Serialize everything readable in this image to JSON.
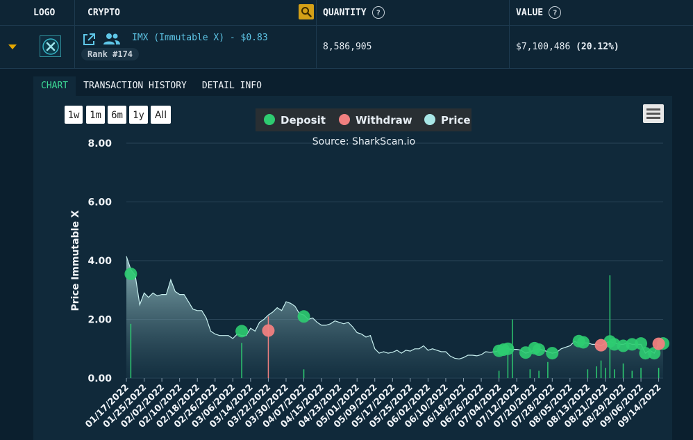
{
  "header": {
    "logo_label": "LOGO",
    "crypto_label": "CRYPTO",
    "quantity_label": "QUANTITY",
    "value_label": "VALUE",
    "help_glyph": "?"
  },
  "asset": {
    "name_price": "IMX (Immutable X) - $0.83",
    "rank": "Rank #174",
    "quantity": "8,586,905",
    "value": "$7,100,486",
    "value_pct": "(20.12%)"
  },
  "tabs": [
    {
      "label": "CHART"
    },
    {
      "label": "TRANSACTION HISTORY"
    },
    {
      "label": "DETAIL INFO"
    }
  ],
  "chart_controls": {
    "ranges": [
      "1w",
      "1m",
      "6m",
      "1y",
      "All"
    ],
    "menu_icon": "hamburger-menu-icon"
  },
  "colors": {
    "deposit": "#2ecc71",
    "withdraw": "#f08080",
    "price": "#a8e6e6",
    "accent": "#3ddc97",
    "caret": "#e6a800"
  },
  "chart_data": {
    "type": "area",
    "subtitle": "Source: SharkScan.io",
    "ylabel": "Price Immutable X",
    "xlabel": "",
    "ylim": [
      0,
      8
    ],
    "y_ticks": [
      "0.00",
      "2.00",
      "4.00",
      "6.00",
      "8.00"
    ],
    "grid": true,
    "legend_position": "top-center",
    "legend": [
      "Deposit",
      "Withdraw",
      "Price"
    ],
    "x_ticks": [
      "01/17/2022",
      "01/25/2022",
      "02/02/2022",
      "02/10/2022",
      "02/18/2022",
      "02/26/2022",
      "03/06/2022",
      "03/14/2022",
      "03/22/2022",
      "03/30/2022",
      "04/07/2022",
      "04/15/2022",
      "04/23/2022",
      "05/01/2022",
      "05/09/2022",
      "05/17/2022",
      "05/25/2022",
      "06/02/2022",
      "06/10/2022",
      "06/18/2022",
      "06/26/2022",
      "07/04/2022",
      "07/12/2022",
      "07/20/2022",
      "07/28/2022",
      "08/05/2022",
      "08/13/2022",
      "08/21/2022",
      "08/29/2022",
      "09/06/2022",
      "09/14/2022"
    ],
    "price_series": {
      "name": "Price",
      "x": [
        "01/17/2022",
        "01/19/2022",
        "01/21/2022",
        "01/23/2022",
        "01/25/2022",
        "01/27/2022",
        "01/29/2022",
        "01/31/2022",
        "02/02/2022",
        "02/04/2022",
        "02/06/2022",
        "02/08/2022",
        "02/10/2022",
        "02/12/2022",
        "02/14/2022",
        "02/16/2022",
        "02/18/2022",
        "02/20/2022",
        "02/22/2022",
        "02/24/2022",
        "02/26/2022",
        "02/28/2022",
        "03/02/2022",
        "03/04/2022",
        "03/06/2022",
        "03/08/2022",
        "03/10/2022",
        "03/12/2022",
        "03/14/2022",
        "03/16/2022",
        "03/18/2022",
        "03/20/2022",
        "03/22/2022",
        "03/24/2022",
        "03/26/2022",
        "03/28/2022",
        "03/30/2022",
        "04/01/2022",
        "04/03/2022",
        "04/05/2022",
        "04/07/2022",
        "04/09/2022",
        "04/11/2022",
        "04/13/2022",
        "04/15/2022",
        "04/17/2022",
        "04/19/2022",
        "04/21/2022",
        "04/23/2022",
        "04/25/2022",
        "04/27/2022",
        "04/29/2022",
        "05/01/2022",
        "05/03/2022",
        "05/05/2022",
        "05/07/2022",
        "05/09/2022",
        "05/11/2022",
        "05/13/2022",
        "05/15/2022",
        "05/17/2022",
        "05/19/2022",
        "05/21/2022",
        "05/23/2022",
        "05/25/2022",
        "05/27/2022",
        "05/29/2022",
        "05/31/2022",
        "06/02/2022",
        "06/04/2022",
        "06/06/2022",
        "06/08/2022",
        "06/10/2022",
        "06/12/2022",
        "06/14/2022",
        "06/16/2022",
        "06/18/2022",
        "06/20/2022",
        "06/22/2022",
        "06/24/2022",
        "06/26/2022",
        "06/28/2022",
        "06/30/2022",
        "07/02/2022",
        "07/04/2022",
        "07/06/2022",
        "07/08/2022",
        "07/10/2022",
        "07/12/2022",
        "07/14/2022",
        "07/16/2022",
        "07/18/2022",
        "07/20/2022",
        "07/22/2022",
        "07/24/2022",
        "07/26/2022",
        "07/28/2022",
        "07/30/2022",
        "08/01/2022",
        "08/03/2022",
        "08/05/2022",
        "08/07/2022",
        "08/09/2022",
        "08/11/2022",
        "08/13/2022",
        "08/15/2022",
        "08/17/2022",
        "08/19/2022",
        "08/21/2022",
        "08/23/2022",
        "08/25/2022",
        "08/27/2022",
        "08/29/2022",
        "08/31/2022",
        "09/02/2022",
        "09/04/2022",
        "09/06/2022",
        "09/08/2022",
        "09/10/2022",
        "09/12/2022",
        "09/14/2022",
        "09/16/2022"
      ],
      "values": [
        4.15,
        3.7,
        3.5,
        2.5,
        2.9,
        2.75,
        2.9,
        2.8,
        2.85,
        2.85,
        3.35,
        2.95,
        2.85,
        2.85,
        2.6,
        2.35,
        2.3,
        2.3,
        2.05,
        1.6,
        1.5,
        1.45,
        1.45,
        1.45,
        1.35,
        1.5,
        1.45,
        1.45,
        1.7,
        1.6,
        1.9,
        2.0,
        2.15,
        2.25,
        2.4,
        2.3,
        2.6,
        2.55,
        2.45,
        2.2,
        2.15,
        2.0,
        2.05,
        1.9,
        1.8,
        1.8,
        1.85,
        1.95,
        1.9,
        1.85,
        1.9,
        1.75,
        1.55,
        1.5,
        1.4,
        1.45,
        1.0,
        0.85,
        0.9,
        0.85,
        0.88,
        0.95,
        0.85,
        0.95,
        0.92,
        1.0,
        1.0,
        1.1,
        0.95,
        1.0,
        0.95,
        0.9,
        0.9,
        0.75,
        0.68,
        0.65,
        0.7,
        0.78,
        0.78,
        0.76,
        0.8,
        0.9,
        0.88,
        0.9,
        0.93,
        1.05,
        1.0,
        0.98,
        0.98,
        0.95,
        0.85,
        0.9,
        0.95,
        1.0,
        0.95,
        0.9,
        0.85,
        0.88,
        1.0,
        1.05,
        1.1,
        1.25,
        1.2,
        1.2,
        1.2,
        1.15,
        1.15,
        1.1,
        1.2,
        1.25,
        1.2,
        1.15,
        1.15,
        1.2,
        1.15,
        1.15,
        1.15,
        0.85,
        0.95,
        0.85,
        1.15,
        1.2
      ]
    },
    "deposits": [
      {
        "date": "01/19/2022",
        "price": 3.55
      },
      {
        "date": "03/10/2022",
        "price": 1.6
      },
      {
        "date": "04/07/2022",
        "price": 2.1
      },
      {
        "date": "07/04/2022",
        "price": 0.93
      },
      {
        "date": "07/06/2022",
        "price": 0.97
      },
      {
        "date": "07/08/2022",
        "price": 1.0
      },
      {
        "date": "07/16/2022",
        "price": 0.87
      },
      {
        "date": "07/20/2022",
        "price": 1.02
      },
      {
        "date": "07/22/2022",
        "price": 0.97
      },
      {
        "date": "07/28/2022",
        "price": 0.85
      },
      {
        "date": "08/09/2022",
        "price": 1.26
      },
      {
        "date": "08/11/2022",
        "price": 1.22
      },
      {
        "date": "08/23/2022",
        "price": 1.25
      },
      {
        "date": "08/25/2022",
        "price": 1.15
      },
      {
        "date": "08/29/2022",
        "price": 1.1
      },
      {
        "date": "09/02/2022",
        "price": 1.15
      },
      {
        "date": "09/06/2022",
        "price": 1.18
      },
      {
        "date": "09/08/2022",
        "price": 0.85
      },
      {
        "date": "09/12/2022",
        "price": 0.85
      },
      {
        "date": "09/16/2022",
        "price": 1.18
      }
    ],
    "withdrawals": [
      {
        "date": "03/22/2022",
        "price": 1.62
      },
      {
        "date": "08/19/2022",
        "price": 1.12
      },
      {
        "date": "09/14/2022",
        "price": 1.17
      }
    ],
    "volume_bars": [
      {
        "date": "01/19/2022",
        "value": 1.85,
        "kind": "deposit"
      },
      {
        "date": "03/10/2022",
        "value": 1.2,
        "kind": "deposit"
      },
      {
        "date": "03/22/2022",
        "value": 2.1,
        "kind": "withdraw"
      },
      {
        "date": "04/07/2022",
        "value": 0.3,
        "kind": "deposit"
      },
      {
        "date": "07/04/2022",
        "value": 0.25,
        "kind": "deposit"
      },
      {
        "date": "07/08/2022",
        "value": 0.9,
        "kind": "deposit"
      },
      {
        "date": "07/10/2022",
        "value": 2.0,
        "kind": "deposit"
      },
      {
        "date": "07/18/2022",
        "value": 0.3,
        "kind": "deposit"
      },
      {
        "date": "07/22/2022",
        "value": 0.25,
        "kind": "deposit"
      },
      {
        "date": "07/26/2022",
        "value": 0.55,
        "kind": "deposit"
      },
      {
        "date": "08/13/2022",
        "value": 0.3,
        "kind": "deposit"
      },
      {
        "date": "08/17/2022",
        "value": 0.4,
        "kind": "deposit"
      },
      {
        "date": "08/19/2022",
        "value": 0.6,
        "kind": "deposit"
      },
      {
        "date": "08/21/2022",
        "value": 0.35,
        "kind": "deposit"
      },
      {
        "date": "08/23/2022",
        "value": 3.5,
        "kind": "deposit"
      },
      {
        "date": "08/25/2022",
        "value": 0.3,
        "kind": "deposit"
      },
      {
        "date": "08/29/2022",
        "value": 0.5,
        "kind": "deposit"
      },
      {
        "date": "09/02/2022",
        "value": 0.25,
        "kind": "deposit"
      },
      {
        "date": "09/06/2022",
        "value": 0.35,
        "kind": "deposit"
      },
      {
        "date": "09/14/2022",
        "value": 0.35,
        "kind": "deposit"
      }
    ]
  }
}
